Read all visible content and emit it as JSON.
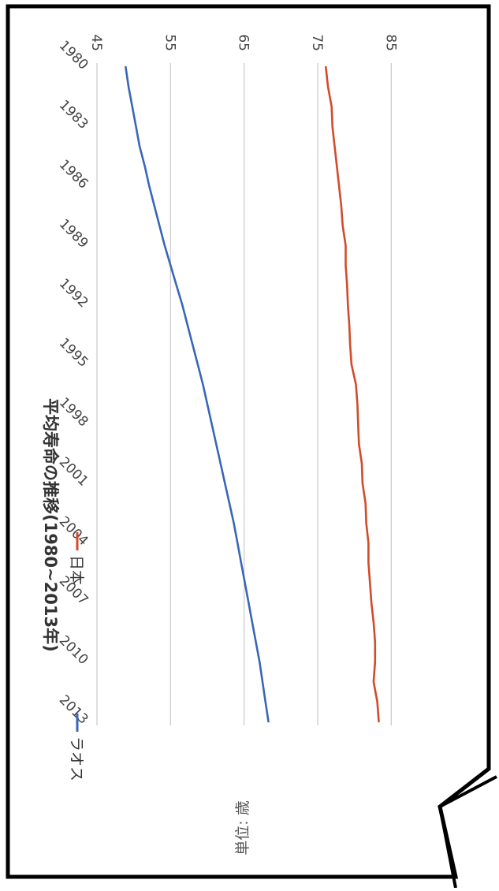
{
  "chart_data": {
    "type": "line",
    "title": "平均寿命の推移(1980~2013年)",
    "ylabel": "単位: 歳",
    "xlabel": "",
    "x": [
      1980,
      1981,
      1982,
      1983,
      1984,
      1985,
      1986,
      1987,
      1988,
      1989,
      1990,
      1991,
      1992,
      1993,
      1994,
      1995,
      1996,
      1997,
      1998,
      1999,
      2000,
      2001,
      2002,
      2003,
      2004,
      2005,
      2006,
      2007,
      2008,
      2009,
      2010,
      2011,
      2012,
      2013
    ],
    "x_tick_labels": [
      "1980",
      "1983",
      "1986",
      "1989",
      "1992",
      "1995",
      "1998",
      "2001",
      "2004",
      "2007",
      "2010",
      "2013"
    ],
    "y_ticks": [
      "45",
      "55",
      "65",
      "75",
      "85"
    ],
    "ylim": [
      45,
      90
    ],
    "grid": true,
    "legend_position": "top",
    "series": [
      {
        "name": "ラオス",
        "color": "#3a66b8",
        "values": [
          48.9,
          49.3,
          49.8,
          50.3,
          50.8,
          51.5,
          52.1,
          52.8,
          53.5,
          54.2,
          55.0,
          55.8,
          56.6,
          57.3,
          58.0,
          58.7,
          59.4,
          60.0,
          60.6,
          61.2,
          61.8,
          62.4,
          63.0,
          63.6,
          64.1,
          64.6,
          65.1,
          65.6,
          66.1,
          66.6,
          67.1,
          67.5,
          67.9,
          68.3
        ]
      },
      {
        "name": "日本",
        "color": "#d24b2a",
        "values": [
          76.1,
          76.4,
          76.9,
          77.0,
          77.3,
          77.6,
          77.9,
          78.2,
          78.4,
          78.8,
          78.8,
          79.0,
          79.1,
          79.3,
          79.4,
          79.6,
          80.2,
          80.4,
          80.5,
          80.6,
          81.0,
          81.1,
          81.5,
          81.6,
          81.9,
          81.9,
          82.1,
          82.3,
          82.6,
          82.8,
          82.8,
          82.6,
          83.1,
          83.3
        ]
      }
    ]
  }
}
